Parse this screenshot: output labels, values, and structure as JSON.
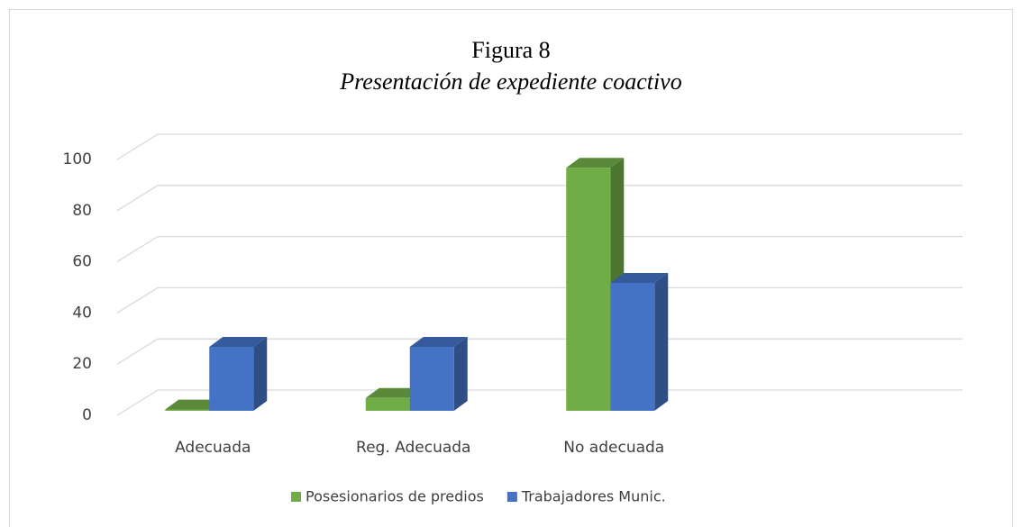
{
  "chart_data": {
    "type": "bar3d",
    "title": "Figura 8",
    "subtitle": "Presentación de expediente coactivo",
    "categories": [
      "Adecuada",
      "Reg. Adecuada",
      "No adecuada",
      null
    ],
    "series": [
      {
        "name": "Posesionarios de predios",
        "color": "#70ad47",
        "values": [
          0.5,
          5,
          95,
          null
        ]
      },
      {
        "name": "Trabajadores Munic.",
        "color": "#4472c4",
        "values": [
          25,
          25,
          50,
          null
        ]
      }
    ],
    "ylim": [
      0,
      100
    ],
    "yticks": [
      0,
      20,
      40,
      60,
      80,
      100
    ],
    "grid": true,
    "legend": "bottom"
  }
}
